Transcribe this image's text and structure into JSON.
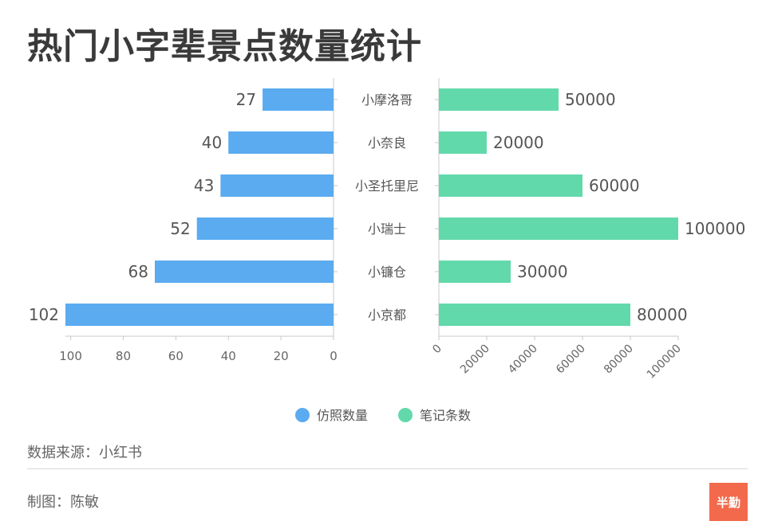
{
  "title": "热门小字辈景点数量统计",
  "source": "数据来源：小红书",
  "credit": "制图：陈敏",
  "logo_text": "半勤",
  "chart_data": {
    "type": "bar",
    "orientation": "horizontal",
    "layout": "butterfly",
    "categories": [
      "小摩洛哥",
      "小奈良",
      "小圣托里尼",
      "小瑞士",
      "小镰仓",
      "小京都"
    ],
    "series": [
      {
        "name": "仿照数量",
        "values": [
          27,
          40,
          43,
          52,
          68,
          102
        ],
        "color": "#5aabf0",
        "side": "left",
        "xlim": [
          0,
          102
        ],
        "ticks": [
          0,
          20,
          40,
          60,
          80,
          100
        ],
        "tick_labels": [
          "0",
          "20",
          "40",
          "60",
          "80",
          "100"
        ]
      },
      {
        "name": "笔记条数",
        "values": [
          50000,
          20000,
          60000,
          100000,
          30000,
          80000
        ],
        "color": "#62d9ab",
        "side": "right",
        "xlim": [
          0,
          100000
        ],
        "ticks": [
          0,
          20000,
          40000,
          60000,
          80000,
          100000
        ],
        "tick_labels": [
          "0",
          "20000",
          "40000",
          "60000",
          "80000",
          "100000"
        ]
      }
    ],
    "value_labels": [
      [
        "27",
        "40",
        "43",
        "52",
        "68",
        "102"
      ],
      [
        "50000",
        "20000",
        "60000",
        "100000",
        "30000",
        "80000"
      ]
    ],
    "legend": [
      "仿照数量",
      "笔记条数"
    ],
    "legend_position": "bottom-center",
    "grid": false
  }
}
